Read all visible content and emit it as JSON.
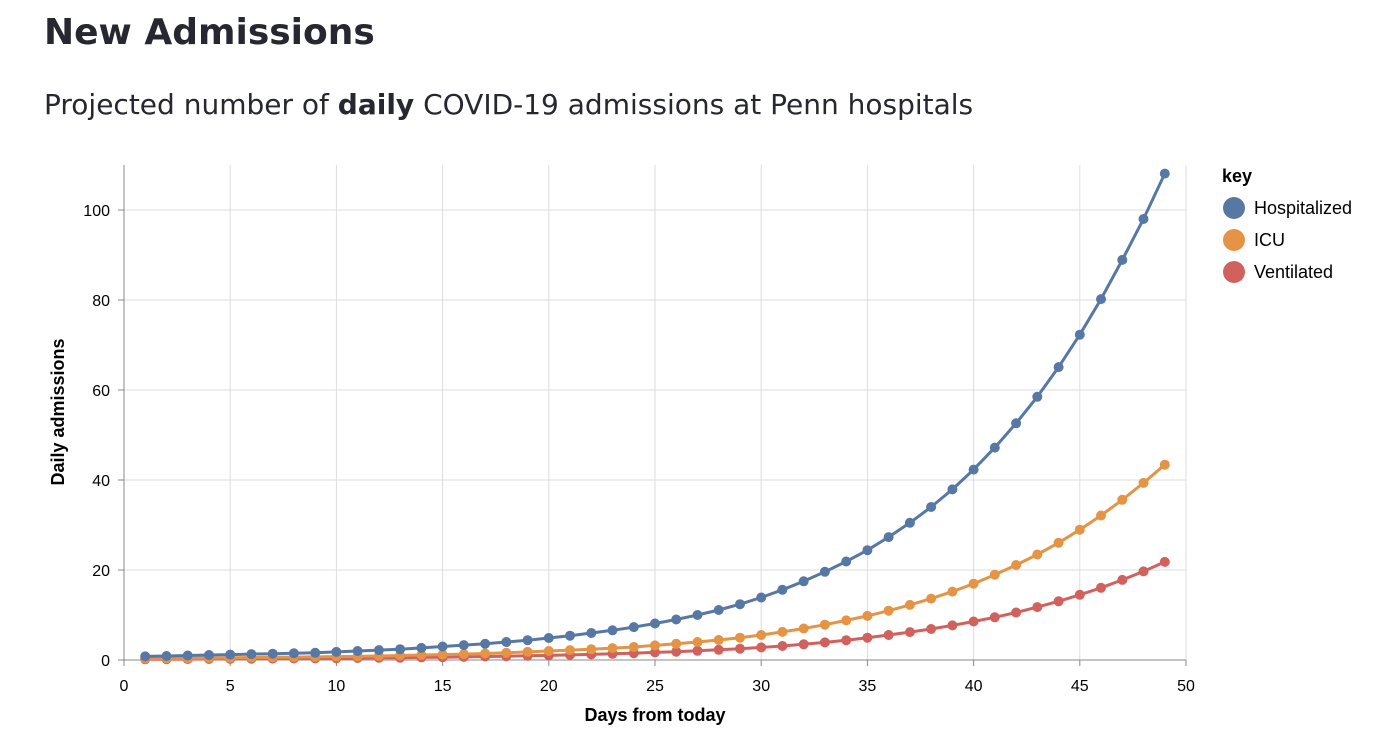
{
  "page": {
    "title": "New Admissions",
    "subtitle_prefix": "Projected number of ",
    "subtitle_bold": "daily",
    "subtitle_suffix": " COVID-19 admissions at Penn hospitals"
  },
  "chart_data": {
    "type": "line",
    "xlabel": "Days from today",
    "ylabel": "Daily admissions",
    "xlim": [
      0,
      50
    ],
    "ylim": [
      0,
      110
    ],
    "x_ticks": [
      0,
      5,
      10,
      15,
      20,
      25,
      30,
      35,
      40,
      45,
      50
    ],
    "y_ticks": [
      0,
      20,
      40,
      60,
      80,
      100
    ],
    "grid": true,
    "points": true,
    "legend_title": "key",
    "legend_position": "right",
    "x": [
      1,
      2,
      3,
      4,
      5,
      6,
      7,
      8,
      9,
      10,
      11,
      12,
      13,
      14,
      15,
      16,
      17,
      18,
      19,
      20,
      21,
      22,
      23,
      24,
      25,
      26,
      27,
      28,
      29,
      30,
      31,
      32,
      33,
      34,
      35,
      36,
      37,
      38,
      39,
      40,
      41,
      42,
      43,
      44,
      45,
      46,
      47,
      48,
      49
    ],
    "series": [
      {
        "name": "Hospitalized",
        "color": "#5778a4",
        "values": [
          0.8,
          0.9,
          1.0,
          1.1,
          1.2,
          1.3,
          1.4,
          1.5,
          1.6,
          1.8,
          2.0,
          2.2,
          2.4,
          2.7,
          3.0,
          3.3,
          3.6,
          4.0,
          4.4,
          4.9,
          5.4,
          6.0,
          6.6,
          7.3,
          8.1,
          9.0,
          10.0,
          11.1,
          12.4,
          13.9,
          15.6,
          17.5,
          19.6,
          21.9,
          24.4,
          27.3,
          30.5,
          34.0,
          37.9,
          42.3,
          47.2,
          52.6,
          58.5,
          65.1,
          72.3,
          80.2,
          88.9,
          98.0,
          108.1
        ]
      },
      {
        "name": "ICU",
        "color": "#e49444",
        "values": [
          0.3,
          0.35,
          0.4,
          0.45,
          0.5,
          0.55,
          0.6,
          0.65,
          0.7,
          0.75,
          0.8,
          0.9,
          1.0,
          1.1,
          1.2,
          1.3,
          1.45,
          1.6,
          1.8,
          2.0,
          2.2,
          2.4,
          2.65,
          2.9,
          3.25,
          3.6,
          4.0,
          4.45,
          4.95,
          5.55,
          6.25,
          7.0,
          7.85,
          8.8,
          9.8,
          10.95,
          12.25,
          13.65,
          15.2,
          16.95,
          18.95,
          21.1,
          23.45,
          26.05,
          28.95,
          32.1,
          35.6,
          39.35,
          43.4
        ]
      },
      {
        "name": "Ventilated",
        "color": "#d1615d",
        "values": [
          0.15,
          0.18,
          0.2,
          0.22,
          0.25,
          0.28,
          0.3,
          0.33,
          0.36,
          0.4,
          0.44,
          0.48,
          0.52,
          0.58,
          0.63,
          0.7,
          0.77,
          0.85,
          0.94,
          1.03,
          1.13,
          1.25,
          1.38,
          1.52,
          1.68,
          1.85,
          2.05,
          2.27,
          2.52,
          2.8,
          3.12,
          3.5,
          3.92,
          4.4,
          4.95,
          5.55,
          6.2,
          6.9,
          7.7,
          8.55,
          9.5,
          10.55,
          11.75,
          13.05,
          14.5,
          16.05,
          17.8,
          19.7,
          21.8
        ]
      }
    ]
  }
}
